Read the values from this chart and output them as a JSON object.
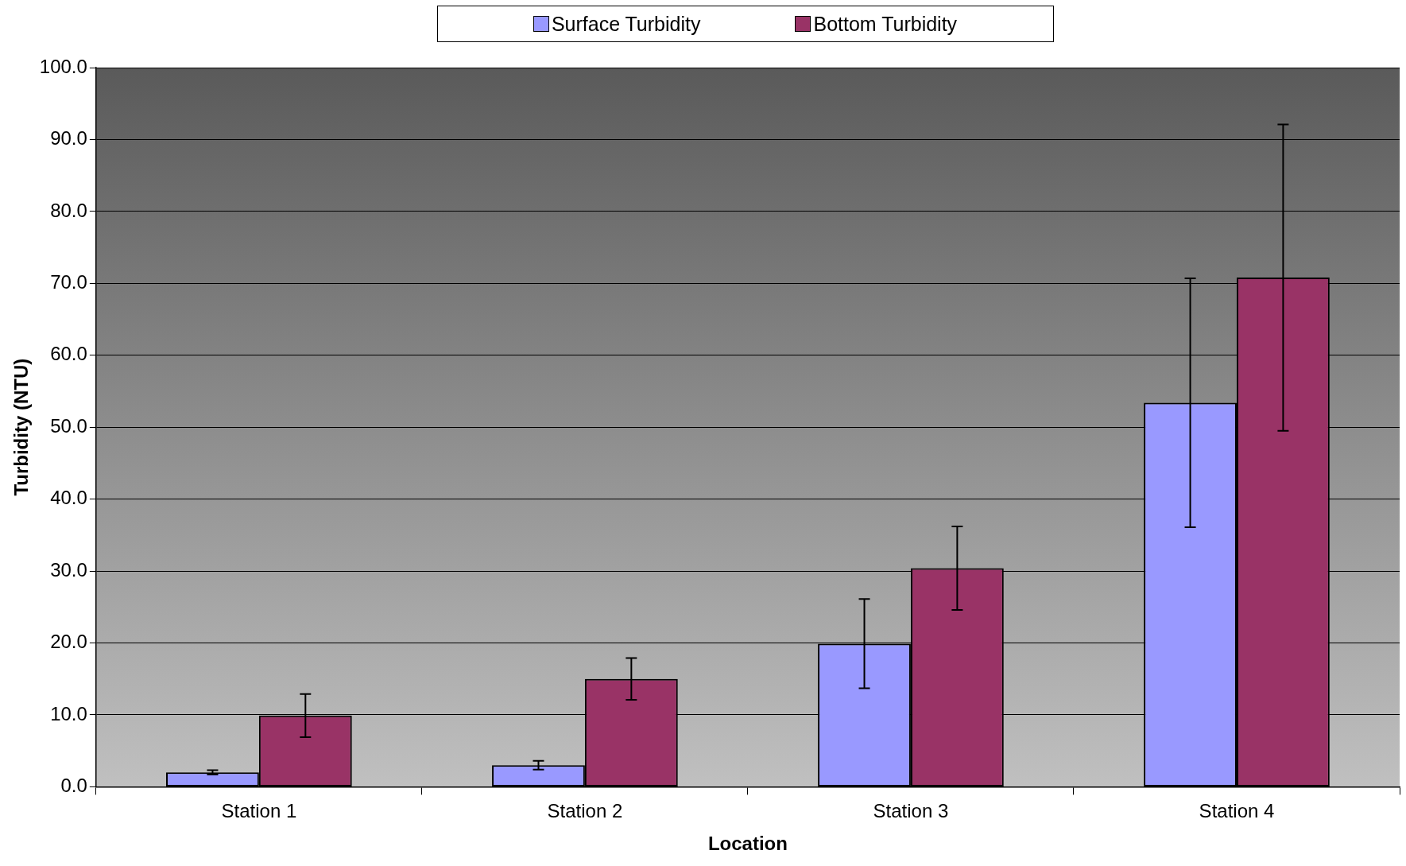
{
  "chart_data": {
    "type": "bar",
    "xlabel": "Location",
    "ylabel": "Turbidity (NTU)",
    "categories": [
      "Station 1",
      "Station 2",
      "Station 3",
      "Station 4"
    ],
    "series": [
      {
        "name": "Surface Turbidity",
        "color": "#9999ff",
        "values": [
          2.0,
          3.0,
          19.9,
          53.4
        ],
        "errors": [
          0.3,
          0.6,
          6.2,
          17.3
        ]
      },
      {
        "name": "Bottom Turbidity",
        "color": "#993366",
        "values": [
          9.9,
          15.0,
          30.4,
          70.8
        ],
        "errors": [
          3.0,
          2.9,
          5.8,
          21.3
        ]
      }
    ],
    "ylim": [
      0,
      100
    ],
    "yticks": [
      {
        "value": 0,
        "label": "0.0"
      },
      {
        "value": 10,
        "label": "10.0"
      },
      {
        "value": 20,
        "label": "20.0"
      },
      {
        "value": 30,
        "label": "30.0"
      },
      {
        "value": 40,
        "label": "40.0"
      },
      {
        "value": 50,
        "label": "50.0"
      },
      {
        "value": 60,
        "label": "60.0"
      },
      {
        "value": 70,
        "label": "70.0"
      },
      {
        "value": 80,
        "label": "80.0"
      },
      {
        "value": 90,
        "label": "90.0"
      },
      {
        "value": 100,
        "label": "100.0"
      }
    ],
    "grid": "y",
    "legend": "top"
  }
}
